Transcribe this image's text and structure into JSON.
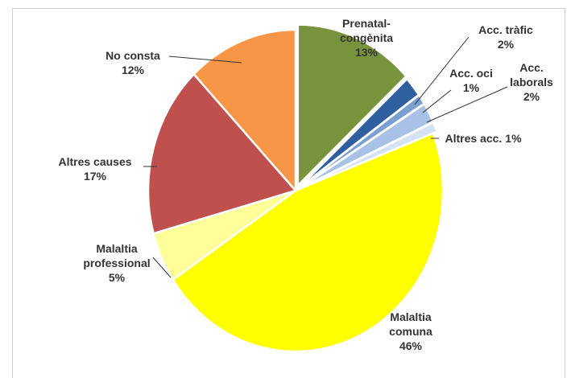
{
  "chart_data": {
    "type": "pie",
    "categories": [
      "Prenatal-congènita",
      "Acc. tràfic",
      "Acc. oci",
      "Acc. laborals",
      "Altres acc.",
      "Malaltia comuna",
      "Malaltia professional",
      "Altres causes",
      "No consta"
    ],
    "values": [
      13,
      2,
      1,
      2,
      1,
      46,
      5,
      17,
      12
    ],
    "value_labels": [
      "13%",
      "2%",
      "1%",
      "2%",
      "1%",
      "46%",
      "5%",
      "17%",
      "12%"
    ],
    "colors": [
      "#77933c",
      "#2f5f9e",
      "#7c9fd2",
      "#a8c1e5",
      "#d5e2f3",
      "#ffff00",
      "#ffff99",
      "#c0504d",
      "#f79646"
    ]
  }
}
